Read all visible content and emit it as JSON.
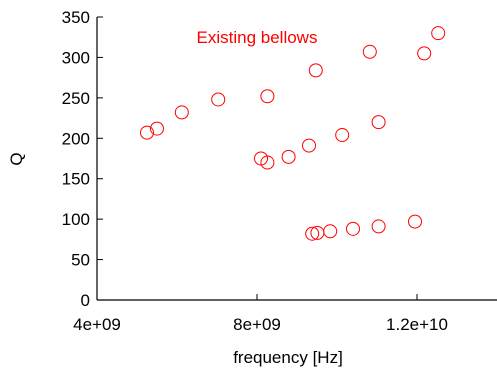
{
  "chart_data": {
    "type": "scatter",
    "title": "",
    "xlabel": "frequency [Hz]",
    "ylabel": "Q",
    "xlim": [
      4000000000,
      14000000000
    ],
    "ylim": [
      0,
      350
    ],
    "x_ticks": [
      4000000000,
      8000000000,
      12000000000
    ],
    "x_tick_labels": [
      "4e+09",
      "8e+09",
      "1.2e+10"
    ],
    "y_ticks": [
      0,
      50,
      100,
      150,
      200,
      250,
      300,
      350
    ],
    "y_tick_labels": [
      "0",
      "50",
      "100",
      "150",
      "200",
      "250",
      "300",
      "350"
    ],
    "grid": false,
    "marker": "open-circle",
    "series": [
      {
        "name": "Existing bellows",
        "color": "#ff0000",
        "points": [
          {
            "x": 5250000000,
            "y": 207
          },
          {
            "x": 5500000000,
            "y": 212
          },
          {
            "x": 6120000000,
            "y": 232
          },
          {
            "x": 7030000000,
            "y": 248
          },
          {
            "x": 8260000000,
            "y": 252
          },
          {
            "x": 9470000000,
            "y": 284
          },
          {
            "x": 10820000000,
            "y": 307
          },
          {
            "x": 12180000000,
            "y": 305
          },
          {
            "x": 12530000000,
            "y": 330
          },
          {
            "x": 8100000000,
            "y": 175
          },
          {
            "x": 8260000000,
            "y": 170
          },
          {
            "x": 8790000000,
            "y": 177
          },
          {
            "x": 9300000000,
            "y": 191
          },
          {
            "x": 10130000000,
            "y": 204
          },
          {
            "x": 11040000000,
            "y": 220
          },
          {
            "x": 9380000000,
            "y": 82
          },
          {
            "x": 9510000000,
            "y": 83
          },
          {
            "x": 9830000000,
            "y": 85
          },
          {
            "x": 10400000000,
            "y": 88
          },
          {
            "x": 11040000000,
            "y": 91
          },
          {
            "x": 11950000000,
            "y": 97
          }
        ]
      }
    ],
    "annotation": {
      "text": "Existing bellows",
      "color": "#ff0000",
      "x": 8000000000,
      "y": 325
    }
  }
}
